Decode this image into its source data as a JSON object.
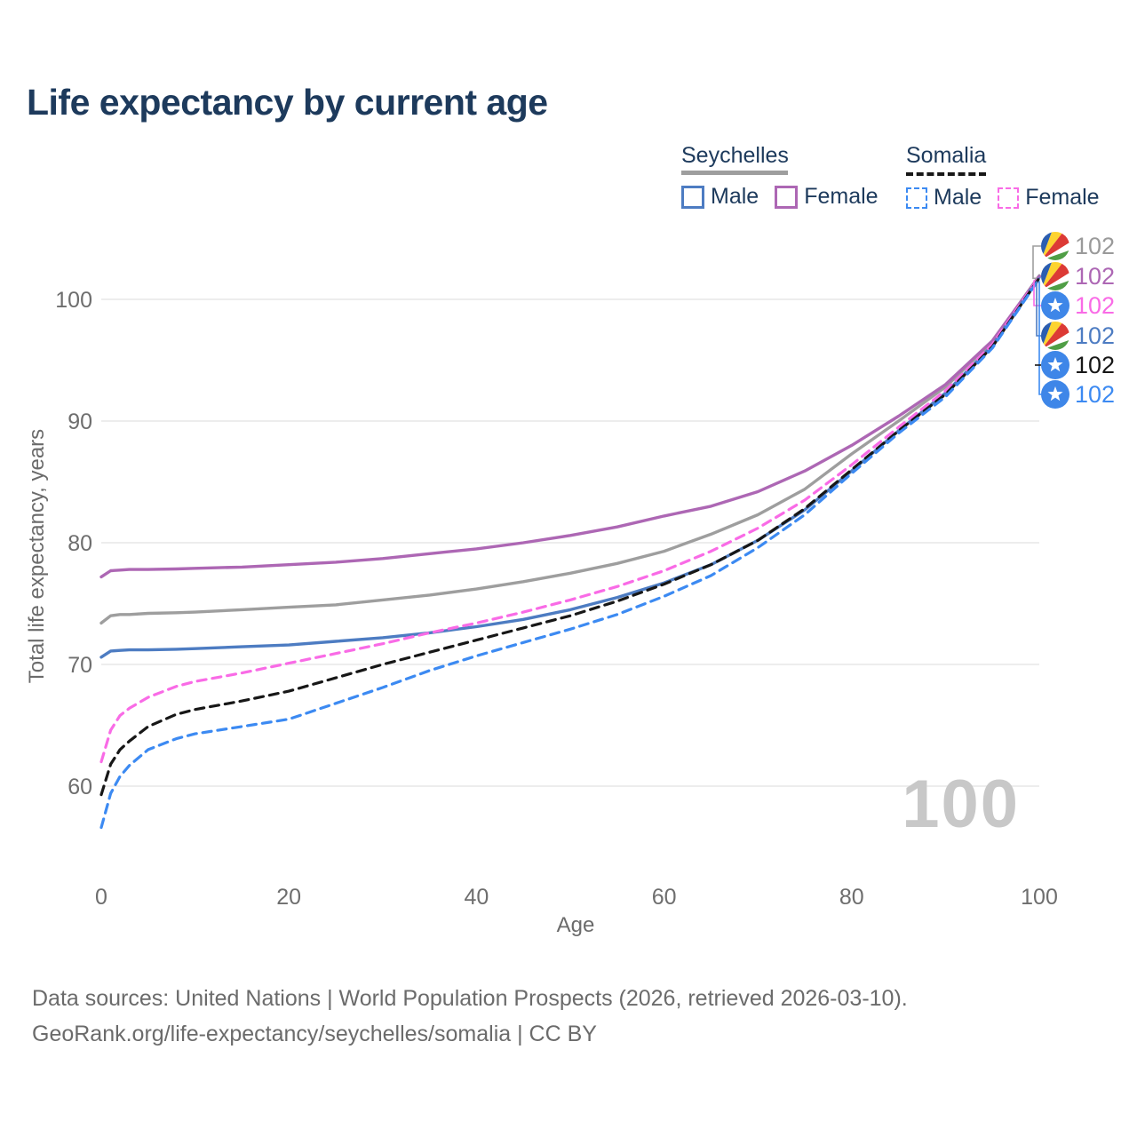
{
  "title": "Life expectancy by current age",
  "legend": {
    "groups": [
      {
        "name": "Seychelles",
        "line_style": "solid",
        "underline_color": "#9e9e9e",
        "items": [
          {
            "label": "Male",
            "color": "#4d7cc2"
          },
          {
            "label": "Female",
            "color": "#ad67b4"
          }
        ]
      },
      {
        "name": "Somalia",
        "line_style": "dashed",
        "underline_color": "#171717",
        "items": [
          {
            "label": "Male",
            "color": "#3c8af2"
          },
          {
            "label": "Female",
            "color": "#f96be6"
          }
        ]
      }
    ]
  },
  "watermark": "100",
  "footer": {
    "line1": "Data sources: United Nations | World Population Prospects (2026, retrieved 2026-03-10).",
    "line2": "GeoRank.org/life-expectancy/seychelles/somalia | CC BY"
  },
  "chart_data": {
    "type": "line",
    "title": "Life expectancy by current age",
    "xlabel": "Age",
    "ylabel": "Total life expectancy, years",
    "xlim": [
      0,
      100
    ],
    "ylim": [
      55,
      104
    ],
    "x_ticks": [
      0,
      20,
      40,
      60,
      80,
      100
    ],
    "y_ticks": [
      60,
      70,
      80,
      90,
      100
    ],
    "grid": "horizontal",
    "legend_position": "top-right",
    "x": [
      0,
      1,
      2,
      3,
      5,
      8,
      10,
      15,
      20,
      25,
      30,
      35,
      40,
      45,
      50,
      55,
      60,
      65,
      70,
      75,
      80,
      85,
      90,
      95,
      100
    ],
    "series": [
      {
        "name": "Seychelles",
        "sex": "both",
        "color": "#9e9e9e",
        "dash": "solid",
        "flag": "seychelles",
        "label_rank": 0,
        "end_label": "102",
        "end_label_color": "#9a9a9a",
        "values": [
          73.4,
          74.0,
          74.1,
          74.1,
          74.2,
          74.25,
          74.3,
          74.5,
          74.7,
          74.9,
          75.3,
          75.7,
          76.2,
          76.8,
          77.5,
          78.3,
          79.3,
          80.7,
          82.3,
          84.4,
          87.3,
          90.0,
          92.8,
          96.5,
          101.95
        ]
      },
      {
        "name": "Seychelles",
        "sex": "female",
        "color": "#ad67b4",
        "dash": "solid",
        "flag": "seychelles",
        "label_rank": 1,
        "end_label": "102",
        "end_label_color": "#ad67b4",
        "values": [
          77.2,
          77.7,
          77.75,
          77.8,
          77.8,
          77.85,
          77.9,
          78.0,
          78.2,
          78.4,
          78.7,
          79.1,
          79.5,
          80.0,
          80.6,
          81.3,
          82.2,
          83.0,
          84.2,
          85.9,
          88.0,
          90.4,
          93.0,
          96.6,
          101.9
        ]
      },
      {
        "name": "Seychelles",
        "sex": "male",
        "color": "#4d7cc2",
        "dash": "solid",
        "flag": "seychelles",
        "label_rank": 3,
        "end_label": "102",
        "end_label_color": "#4d7cc2",
        "values": [
          70.6,
          71.1,
          71.15,
          71.2,
          71.2,
          71.25,
          71.3,
          71.45,
          71.6,
          71.9,
          72.2,
          72.6,
          73.1,
          73.7,
          74.5,
          75.5,
          76.7,
          78.2,
          80.2,
          82.7,
          85.9,
          89.2,
          92.3,
          96.2,
          101.8
        ]
      },
      {
        "name": "Somalia",
        "sex": "female",
        "color": "#f96be6",
        "dash": "dashed",
        "flag": "somalia",
        "label_rank": 2,
        "end_label": "102",
        "end_label_color": "#f96be6",
        "values": [
          62.0,
          64.6,
          65.8,
          66.4,
          67.3,
          68.2,
          68.6,
          69.3,
          70.1,
          70.9,
          71.7,
          72.6,
          73.4,
          74.3,
          75.3,
          76.4,
          77.7,
          79.3,
          81.2,
          83.5,
          86.4,
          89.5,
          92.5,
          96.3,
          101.85
        ]
      },
      {
        "name": "Somalia",
        "sex": "both",
        "color": "#171717",
        "dash": "dashed",
        "flag": "somalia",
        "label_rank": 4,
        "end_label": "102",
        "end_label_color": "#171717",
        "values": [
          59.3,
          61.8,
          63.0,
          63.7,
          64.9,
          65.9,
          66.3,
          67.0,
          67.8,
          68.9,
          70.0,
          71.0,
          72.0,
          73.0,
          74.0,
          75.2,
          76.6,
          78.2,
          80.2,
          82.8,
          86.0,
          89.2,
          92.2,
          96.1,
          101.75
        ]
      },
      {
        "name": "Somalia",
        "sex": "male",
        "color": "#3c8af2",
        "dash": "dashed",
        "flag": "somalia",
        "label_rank": 5,
        "end_label": "102",
        "end_label_color": "#3c8af2",
        "values": [
          56.6,
          59.4,
          60.8,
          61.7,
          63.0,
          63.9,
          64.3,
          64.9,
          65.5,
          66.8,
          68.1,
          69.5,
          70.7,
          71.8,
          72.9,
          74.1,
          75.6,
          77.3,
          79.6,
          82.3,
          85.7,
          89.0,
          92.0,
          96.0,
          101.7
        ]
      }
    ]
  }
}
